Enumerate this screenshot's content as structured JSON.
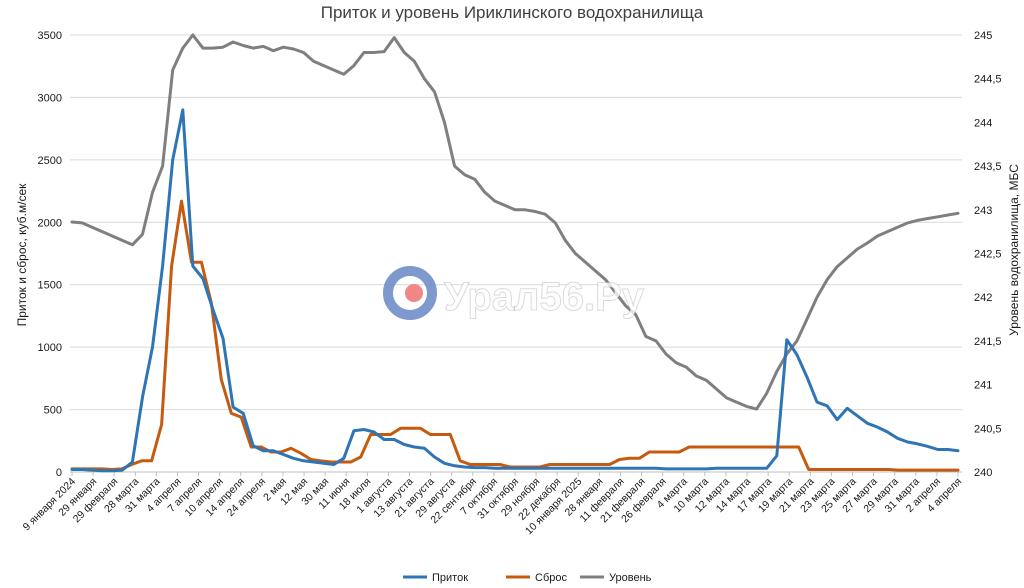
{
  "chart_data": {
    "type": "line",
    "title": "Приток и уровень Ириклинского водохранилища",
    "ylabel_left": "Приток и сброс, куб.м/сек",
    "ylabel_right": "Уровень водохранилища, МБС",
    "ylim_left": [
      0,
      3500
    ],
    "yticks_left": [
      "0",
      "500",
      "1000",
      "1500",
      "2000",
      "2500",
      "3000",
      "3500"
    ],
    "ylim_right": [
      240,
      245
    ],
    "yticks_right": [
      "240",
      "240,5",
      "241",
      "241,5",
      "242",
      "242,5",
      "243",
      "243,5",
      "244",
      "244,5",
      "245"
    ],
    "grid": true,
    "legend_position": "bottom",
    "x_tick_labels": [
      "9 января 2024",
      "29 января",
      "29 февраля",
      "28 марта",
      "31 марта",
      "4 апреля",
      "7 апреля",
      "10 апреля",
      "14 апреля",
      "24 апреля",
      "2 мая",
      "12 мая",
      "30 мая",
      "11 июня",
      "18 июля",
      "1 августа",
      "13 августа",
      "21 августа",
      "29 августа",
      "22 сентября",
      "7 октября",
      "31 октября",
      "29 ноября",
      "22 декабря",
      "10 января 2025",
      "28 января",
      "11 февраля",
      "21 февраля",
      "26 февраля",
      "4 марта",
      "10 марта",
      "12 марта",
      "14 марта",
      "17 марта",
      "19 марта",
      "21 марта",
      "23 марта",
      "25 марта",
      "27 марта",
      "29 марта",
      "31 марта",
      "2 апреля",
      "4 апреля"
    ],
    "series": [
      {
        "name": "Приток",
        "color": "#2e75b6",
        "values": [
          20,
          20,
          15,
          10,
          10,
          15,
          80,
          600,
          1000,
          1650,
          2500,
          2900,
          1650,
          1550,
          1300,
          1070,
          520,
          470,
          210,
          170,
          170,
          140,
          110,
          90,
          80,
          70,
          60,
          110,
          330,
          340,
          320,
          260,
          260,
          220,
          200,
          190,
          120,
          70,
          50,
          40,
          35,
          35,
          30,
          30,
          30,
          30,
          30,
          30,
          30,
          30,
          30,
          30,
          30,
          30,
          30,
          30,
          30,
          30,
          30,
          25,
          25,
          25,
          25,
          25,
          30,
          30,
          30,
          30,
          30,
          30,
          130,
          1060,
          940,
          760,
          560,
          530,
          420,
          510,
          450,
          390,
          360,
          320,
          270,
          240,
          225,
          205,
          180,
          180,
          170
        ]
      },
      {
        "name": "Сброс",
        "color": "#c55a11",
        "values": [
          25,
          25,
          25,
          25,
          20,
          25,
          60,
          90,
          90,
          380,
          1650,
          2170,
          1680,
          1680,
          1350,
          740,
          470,
          440,
          200,
          200,
          160,
          160,
          190,
          150,
          100,
          90,
          80,
          80,
          80,
          120,
          300,
          300,
          300,
          350,
          350,
          350,
          300,
          300,
          300,
          90,
          60,
          60,
          60,
          60,
          40,
          40,
          40,
          40,
          60,
          60,
          60,
          60,
          60,
          60,
          60,
          100,
          110,
          110,
          160,
          160,
          160,
          160,
          200,
          200,
          200,
          200,
          200,
          200,
          200,
          200,
          200,
          200,
          200,
          200,
          20,
          20,
          20,
          20,
          20,
          20,
          20,
          20,
          20,
          15,
          15,
          15,
          15,
          15,
          15,
          15
        ]
      },
      {
        "name": "Уровень",
        "color": "#7f7f7f",
        "axis": "right",
        "values": [
          242.86,
          242.85,
          242.8,
          242.75,
          242.7,
          242.65,
          242.6,
          242.72,
          243.2,
          243.5,
          244.6,
          244.85,
          245.0,
          244.85,
          244.85,
          244.86,
          244.92,
          244.88,
          244.85,
          244.87,
          244.82,
          244.86,
          244.84,
          244.8,
          244.7,
          244.65,
          244.6,
          244.55,
          244.65,
          244.8,
          244.8,
          244.81,
          244.97,
          244.8,
          244.7,
          244.5,
          244.35,
          244.0,
          243.5,
          243.4,
          243.35,
          243.2,
          243.1,
          243.05,
          243.0,
          243.0,
          242.98,
          242.95,
          242.85,
          242.65,
          242.5,
          242.4,
          242.3,
          242.2,
          242.05,
          241.9,
          241.8,
          241.55,
          241.5,
          241.35,
          241.25,
          241.2,
          241.1,
          241.05,
          240.95,
          240.85,
          240.8,
          240.75,
          240.72,
          240.9,
          241.15,
          241.35,
          241.5,
          241.75,
          242.0,
          242.2,
          242.35,
          242.45,
          242.55,
          242.62,
          242.7,
          242.75,
          242.8,
          242.85,
          242.88,
          242.9,
          242.92,
          242.94,
          242.96
        ]
      }
    ]
  },
  "watermark": {
    "text": "Урал56.Ру",
    "logo_ring_color": "#6f8fc9",
    "logo_dot_color": "#f07a7a"
  }
}
